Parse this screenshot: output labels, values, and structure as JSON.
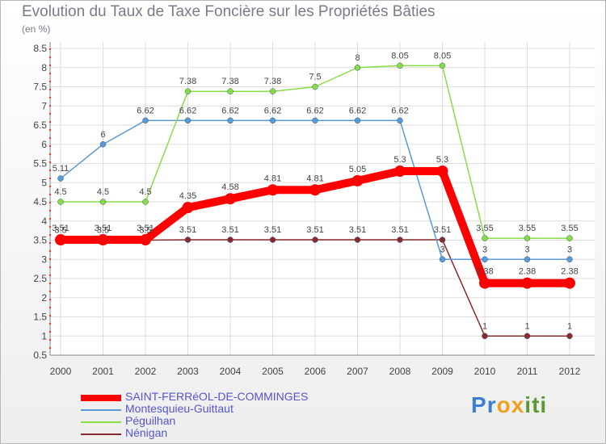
{
  "chart_data": {
    "type": "line",
    "title": "Evolution du Taux de Taxe Foncière sur les Propriétés Bâties",
    "subtitle": "(en %)",
    "x": [
      "2000",
      "2001",
      "2002",
      "2003",
      "2004",
      "2005",
      "2006",
      "2007",
      "2008",
      "2009",
      "2010",
      "2011",
      "2012"
    ],
    "yticks": [
      "0.5",
      "1",
      "1.5",
      "2",
      "2.5",
      "3",
      "3.5",
      "4",
      "4.5",
      "5",
      "5.5",
      "6",
      "6.5",
      "7",
      "7.5",
      "8",
      "8.5"
    ],
    "ylim": [
      0.5,
      8.5
    ],
    "series": [
      {
        "name": "SAINT-FERRéOL-DE-COMMINGES",
        "color": "#ff0000",
        "values": [
          3.51,
          3.51,
          3.51,
          4.35,
          4.58,
          4.81,
          4.81,
          5.05,
          5.3,
          5.3,
          2.38,
          2.38,
          2.38
        ],
        "labels": [
          "3.51",
          "3.51",
          "3.51",
          "4.35",
          "4.58",
          "4.81",
          "4.81",
          "5.05",
          "5.3",
          "5.3",
          "2.38",
          "2.38",
          "2.38"
        ]
      },
      {
        "name": "Montesquieu-Guittaut",
        "color": "#5b9bd5",
        "values": [
          5.11,
          6,
          6.62,
          6.62,
          6.62,
          6.62,
          6.62,
          6.62,
          6.62,
          3,
          3,
          3,
          3
        ],
        "labels": [
          "5.11",
          "6",
          "6.62",
          "6.62",
          "6.62",
          "6.62",
          "6.62",
          "6.62",
          "6.62",
          "3",
          "3",
          "3",
          "3"
        ]
      },
      {
        "name": "Péguilhan",
        "color": "#88dd44",
        "values": [
          4.5,
          4.5,
          4.5,
          7.38,
          7.38,
          7.38,
          7.5,
          8,
          8.05,
          8.05,
          3.55,
          3.55,
          3.55
        ],
        "labels": [
          "4.5",
          "4.5",
          "4.5",
          "7.38",
          "7.38",
          "7.38",
          "7.5",
          "8",
          "8.05",
          "8.05",
          "3.55",
          "3.55",
          "3.55"
        ]
      },
      {
        "name": "Nénigan",
        "color": "#8b2a2a",
        "values": [
          3.5,
          3.5,
          3.5,
          3.51,
          3.51,
          3.51,
          3.51,
          3.51,
          3.51,
          3.51,
          1,
          1,
          1
        ],
        "labels": [
          "3.5",
          "3.5",
          "3.5",
          "3.51",
          "3.51",
          "3.51",
          "3.51",
          "3.51",
          "3.51",
          "3.51",
          "1",
          "1",
          "1"
        ]
      }
    ]
  },
  "logo": {
    "letters": [
      "P",
      "r",
      "o",
      "x",
      "i",
      "t",
      "i"
    ],
    "colors": [
      "#3a7fd0",
      "#3a7fd0",
      "#f0a020",
      "#f0a020",
      "#5a9a30",
      "#5a9a30",
      "#5a9a30"
    ]
  }
}
